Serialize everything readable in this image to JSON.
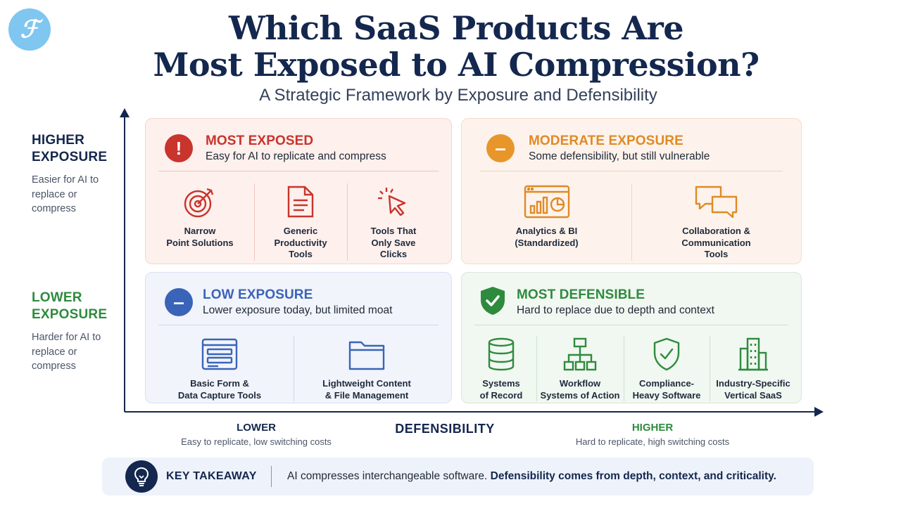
{
  "title_line1": "Which SaaS Products Are",
  "title_line2": "Most Exposed to AI Compression?",
  "subtitle": "A Strategic Framework by Exposure and Defensibility",
  "y_axis": {
    "high_label": "HIGHER",
    "high_label2": "EXPOSURE",
    "high_desc": "Easier for AI to replace or compress",
    "low_label": "LOWER",
    "low_label2": "EXPOSURE",
    "low_desc": "Harder for AI to replace or compress"
  },
  "x_axis": {
    "title": "DEFENSIBILITY",
    "lower_label": "LOWER",
    "lower_desc": "Easy to replicate, low switching costs",
    "higher_label": "HIGHER",
    "higher_desc": "Hard to replicate, high switching costs"
  },
  "quadrants": {
    "most_exposed": {
      "title": "MOST EXPOSED",
      "desc": "Easy for AI to replicate and compress",
      "color": "#c9342c",
      "items": [
        {
          "label": "Narrow\nPoint Solutions",
          "icon": "target-icon"
        },
        {
          "label": "Generic\nProductivity\nTools",
          "icon": "document-icon"
        },
        {
          "label": "Tools That\nOnly Save\nClicks",
          "icon": "cursor-click-icon"
        }
      ]
    },
    "moderate": {
      "title": "MODERATE EXPOSURE",
      "desc": "Some defensibility, but still vulnerable",
      "color": "#e08a24",
      "items": [
        {
          "label": "Analytics & BI\n(Standardized)",
          "icon": "analytics-dashboard-icon"
        },
        {
          "label": "Collaboration &\nCommunication\nTools",
          "icon": "chat-bubbles-icon"
        }
      ]
    },
    "low": {
      "title": "LOW EXPOSURE",
      "desc": "Lower exposure today, but limited moat",
      "color": "#3a64b8",
      "items": [
        {
          "label": "Basic Form &\nData Capture Tools",
          "icon": "form-icon"
        },
        {
          "label": "Lightweight Content\n& File Management",
          "icon": "folder-icon"
        }
      ]
    },
    "defensible": {
      "title": "MOST DEFENSIBLE",
      "desc": "Hard to replace due to depth and context",
      "color": "#2e8b3e",
      "items": [
        {
          "label": "Systems\nof Record",
          "icon": "database-icon"
        },
        {
          "label": "Workflow\nSystems of Action",
          "icon": "workflow-icon"
        },
        {
          "label": "Compliance-\nHeavy Software",
          "icon": "shield-check-icon"
        },
        {
          "label": "Industry-Specific\nVertical SaaS",
          "icon": "buildings-icon"
        }
      ]
    }
  },
  "takeaway": {
    "label": "KEY TAKEAWAY",
    "text_plain": "AI compresses interchangeable software.",
    "text_bold": "Defensibility comes from depth, context, and criticality.",
    "icon": "lightbulb-icon"
  }
}
